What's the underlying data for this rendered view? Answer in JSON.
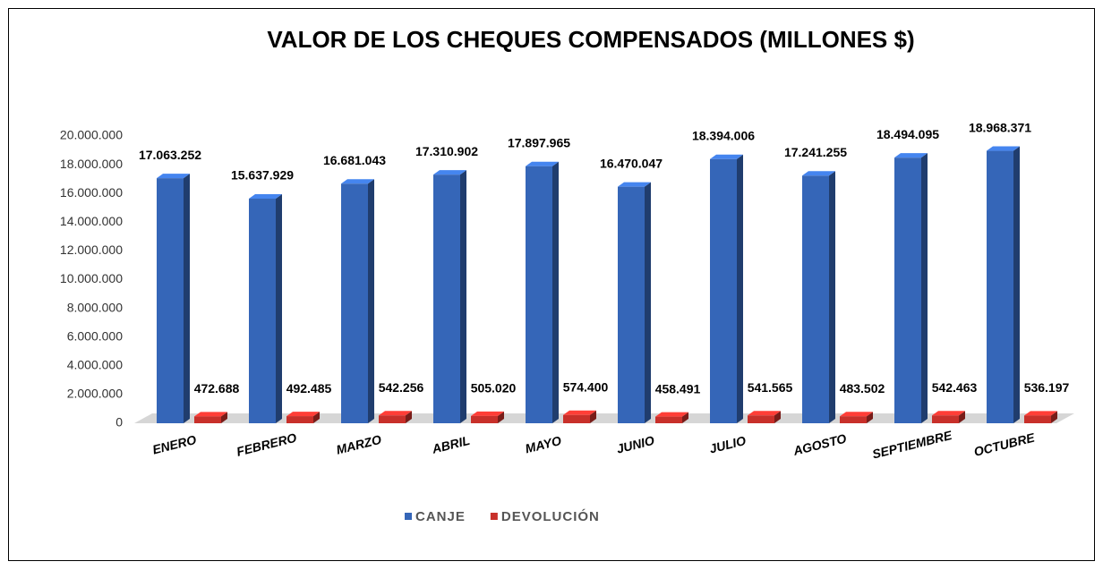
{
  "chart_data": {
    "type": "bar3d",
    "title": "VALOR DE LOS CHEQUES COMPENSADOS (MILLONES $)",
    "categories": [
      "ENERO",
      "FEBRERO",
      "MARZO",
      "ABRIL",
      "MAYO",
      "JUNIO",
      "JULIO",
      "AGOSTO",
      "SEPTIEMBRE",
      "OCTUBRE"
    ],
    "series": [
      {
        "name": "CANJE",
        "color": "#3566b8",
        "values": [
          17063252,
          15637929,
          16681043,
          17310902,
          17897965,
          16470047,
          18394006,
          17241255,
          18494095,
          18968371
        ],
        "value_labels": [
          "17.063.252",
          "15.637.929",
          "16.681.043",
          "17.310.902",
          "17.897.965",
          "16.470.047",
          "18.394.006",
          "17.241.255",
          "18.494.095",
          "18.968.371"
        ]
      },
      {
        "name": "DEVOLUCIÓN",
        "color": "#c8302a",
        "values": [
          472688,
          492485,
          542256,
          505020,
          574400,
          458491,
          541565,
          483502,
          542463,
          536197
        ],
        "value_labels": [
          "472.688",
          "492.485",
          "542.256",
          "505.020",
          "574.400",
          "458.491",
          "541.565",
          "483.502",
          "542.463",
          "536.197"
        ]
      }
    ],
    "ylim": [
      0,
      20000000
    ],
    "yticks": [
      0,
      {
        "value": 2000000,
        "label": "2.000.000"
      },
      {
        "value": 4000000,
        "label": "4.000.000"
      },
      {
        "value": 6000000,
        "label": "6.000.000"
      },
      {
        "value": 8000000,
        "label": "8.000.000"
      },
      {
        "value": 10000000,
        "label": "10.000.000"
      },
      {
        "value": 12000000,
        "label": "12.000.000"
      },
      {
        "value": 14000000,
        "label": "14.000.000"
      },
      {
        "value": 16000000,
        "label": "16.000.000"
      },
      {
        "value": 18000000,
        "label": "18.000.000"
      },
      {
        "value": 20000000,
        "label": "20.000.000"
      }
    ],
    "legend": "bottom",
    "grid": false
  }
}
